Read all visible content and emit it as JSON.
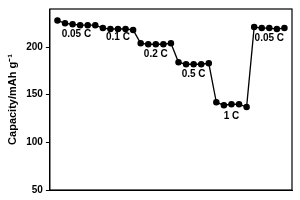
{
  "chart_data": {
    "type": "line",
    "y_label": "Capacity/mAh g⁻¹",
    "x": [
      1,
      2,
      3,
      4,
      5,
      6,
      7,
      8,
      9,
      10,
      11,
      12,
      13,
      14,
      15,
      16,
      17,
      18,
      19,
      20,
      21,
      22,
      23,
      24,
      25,
      26,
      27,
      28,
      29,
      30,
      31
    ],
    "values": [
      228,
      225,
      224,
      223,
      223,
      223,
      220,
      219,
      219,
      219,
      218,
      204,
      203,
      203,
      203,
      204,
      184,
      182,
      182,
      182,
      183,
      142,
      139,
      140,
      140,
      137,
      221,
      220,
      220,
      219,
      220
    ],
    "color": "#000000",
    "marker": "circle",
    "line_style": "solid",
    "xlim": [
      0,
      32
    ],
    "xticks": [
      0,
      10,
      20,
      30
    ],
    "ylim": [
      50,
      240
    ],
    "yticks": [
      50,
      100,
      150,
      200
    ],
    "tick_labels": "y",
    "grid": false,
    "annotations": [
      {
        "text": "0.05 C",
        "x": 3.5,
        "y": 213
      },
      {
        "text": "0.1 C",
        "x": 9,
        "y": 210
      },
      {
        "text": "0.2 C",
        "x": 14,
        "y": 193
      },
      {
        "text": "0.5 C",
        "x": 19,
        "y": 172
      },
      {
        "text": "1 C",
        "x": 24,
        "y": 127
      },
      {
        "text": "0.05 C",
        "x": 29,
        "y": 209
      }
    ]
  }
}
